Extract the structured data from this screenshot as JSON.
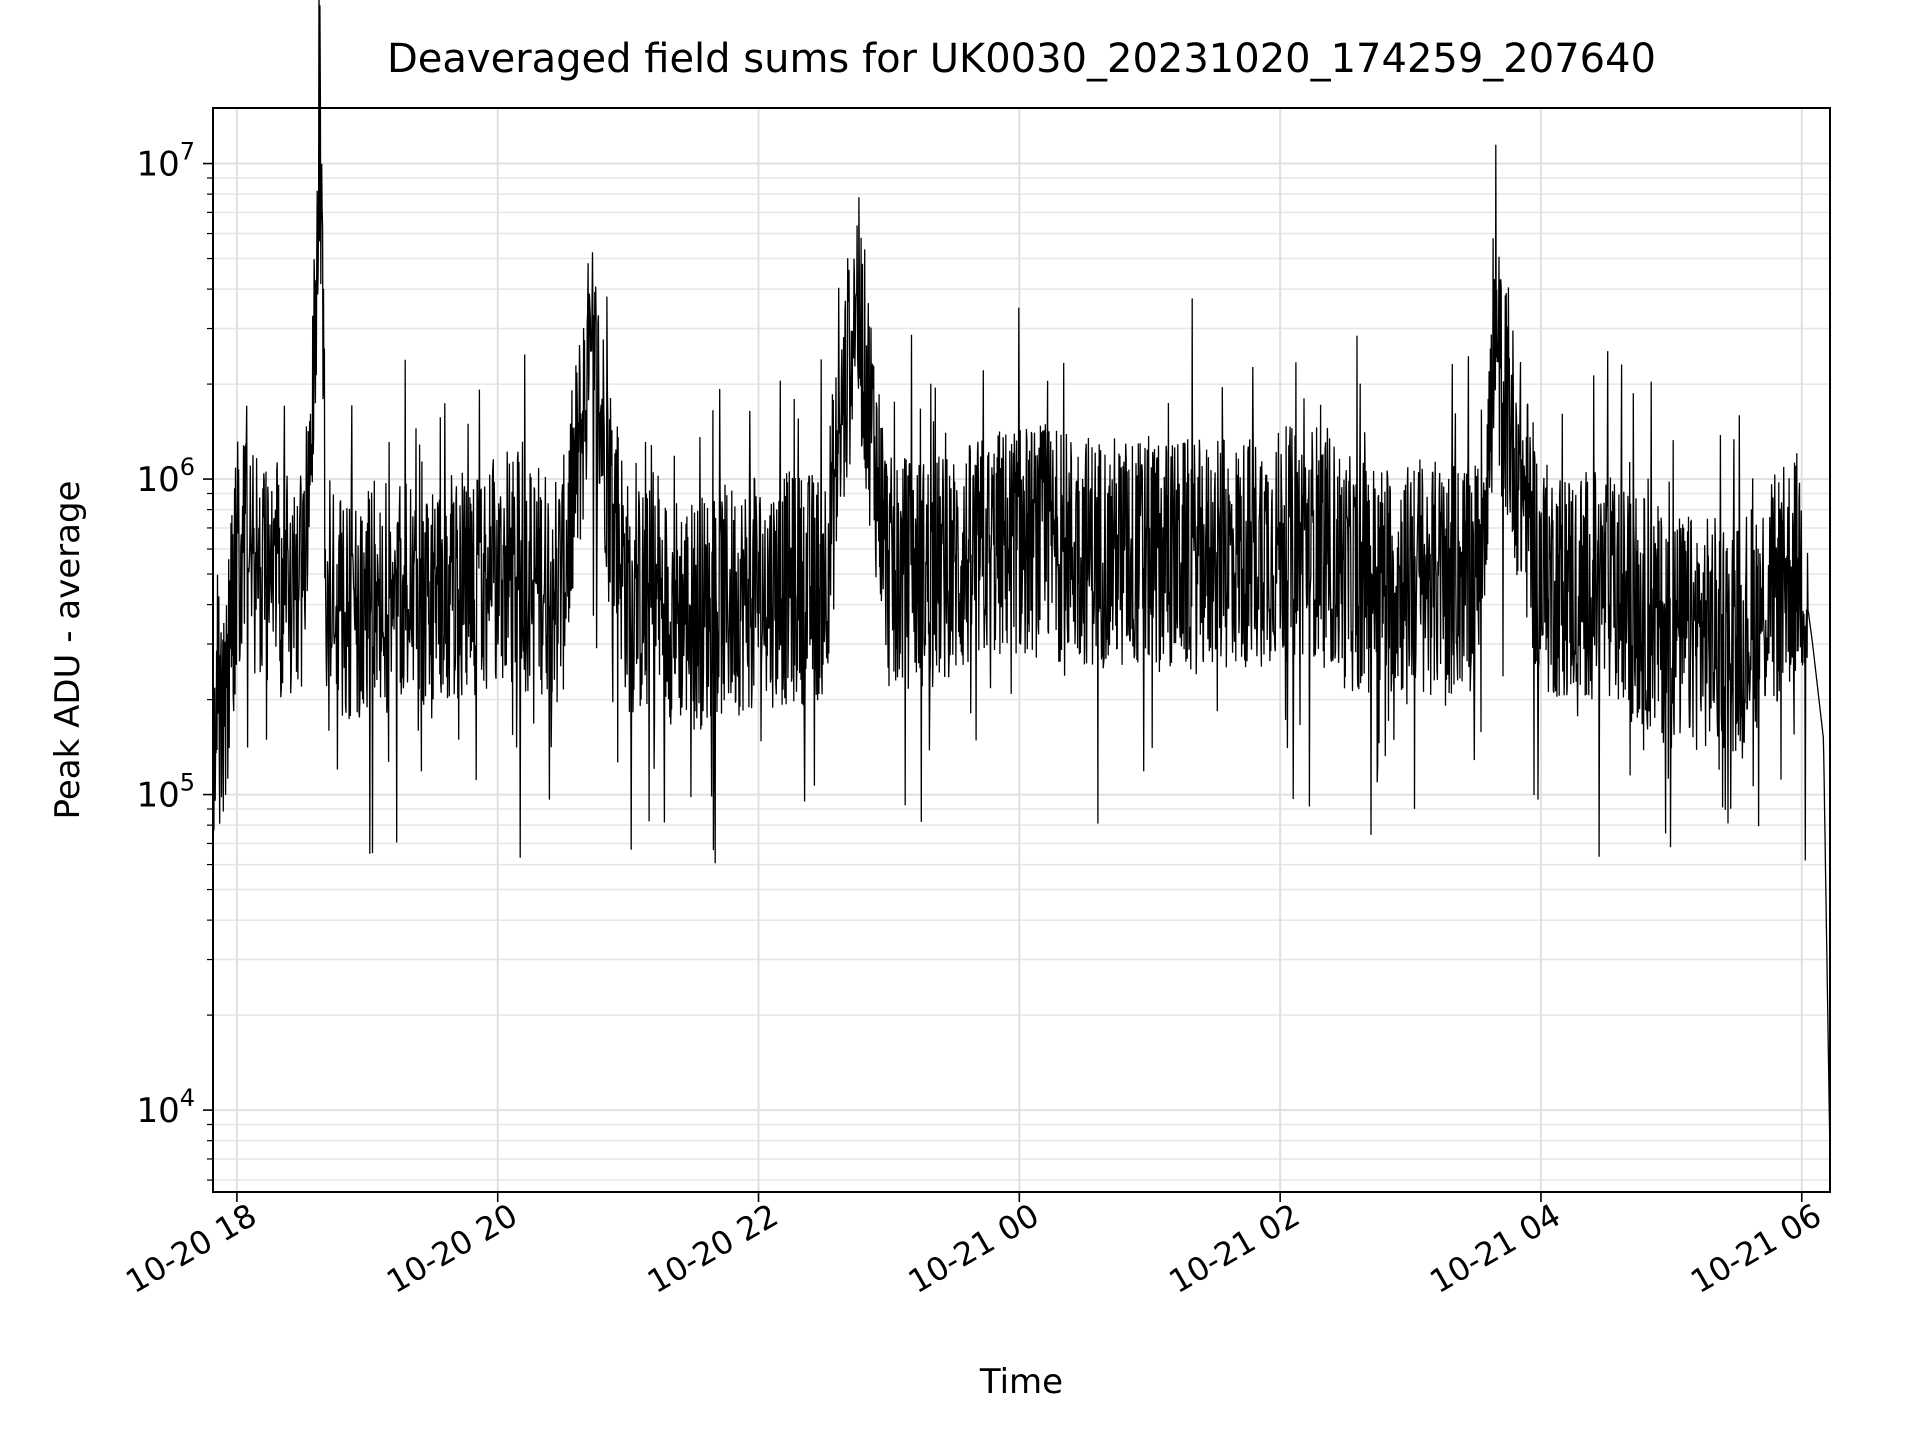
{
  "chart_data": {
    "type": "line",
    "title": "Deaveraged field sums for UK0030_20231020_174259_207640",
    "xlabel": "Time",
    "ylabel": "Peak ADU - average",
    "yscale": "log",
    "grid": true,
    "xlim": [
      "2023-10-20 17:49",
      "2023-10-21 06:13"
    ],
    "ylim": [
      5500,
      15000000
    ],
    "x_tick_labels": [
      "10-20 18",
      "10-20 20",
      "10-20 22",
      "10-21 00",
      "10-21 02",
      "10-21 04",
      "10-21 06"
    ],
    "y_tick_labels": [
      {
        "base": "10",
        "exp": "4"
      },
      {
        "base": "10",
        "exp": "5"
      },
      {
        "base": "10",
        "exp": "6"
      },
      {
        "base": "10",
        "exp": "7"
      }
    ],
    "series": [
      {
        "color": "#000000",
        "x": [
          "2023-10-20 17:49",
          "2023-10-20 17:55",
          "2023-10-20 18:00",
          "2023-10-20 18:10",
          "2023-10-20 18:30",
          "2023-10-20 18:39",
          "2023-10-20 18:41",
          "2023-10-20 18:45",
          "2023-10-20 19:00",
          "2023-10-20 19:30",
          "2023-10-20 20:00",
          "2023-10-20 20:30",
          "2023-10-20 20:43",
          "2023-10-20 21:00",
          "2023-10-20 21:30",
          "2023-10-20 22:00",
          "2023-10-20 22:30",
          "2023-10-20 22:45",
          "2023-10-20 23:00",
          "2023-10-20 23:30",
          "2023-10-20 23:45",
          "2023-10-21 00:00",
          "2023-10-21 00:30",
          "2023-10-21 01:00",
          "2023-10-21 01:30",
          "2023-10-21 02:00",
          "2023-10-21 02:20",
          "2023-10-21 02:30",
          "2023-10-21 03:00",
          "2023-10-21 03:30",
          "2023-10-21 03:40",
          "2023-10-21 04:00",
          "2023-10-21 04:30",
          "2023-10-21 05:00",
          "2023-10-21 05:30",
          "2023-10-21 06:00",
          "2023-10-21 06:05",
          "2023-10-21 06:10",
          "2023-10-21 06:13"
        ],
        "y": [
          150000,
          180000,
          600000,
          500000,
          450000,
          10200000,
          450000,
          400000,
          420000,
          430000,
          500000,
          480000,
          2600000,
          420000,
          380000,
          440000,
          460000,
          3900000,
          500000,
          520000,
          600000,
          650000,
          600000,
          580000,
          560000,
          620000,
          650000,
          500000,
          480000,
          500000,
          2400000,
          480000,
          450000,
          330000,
          320000,
          550000,
          300000,
          150000,
          7000
        ]
      }
    ]
  }
}
